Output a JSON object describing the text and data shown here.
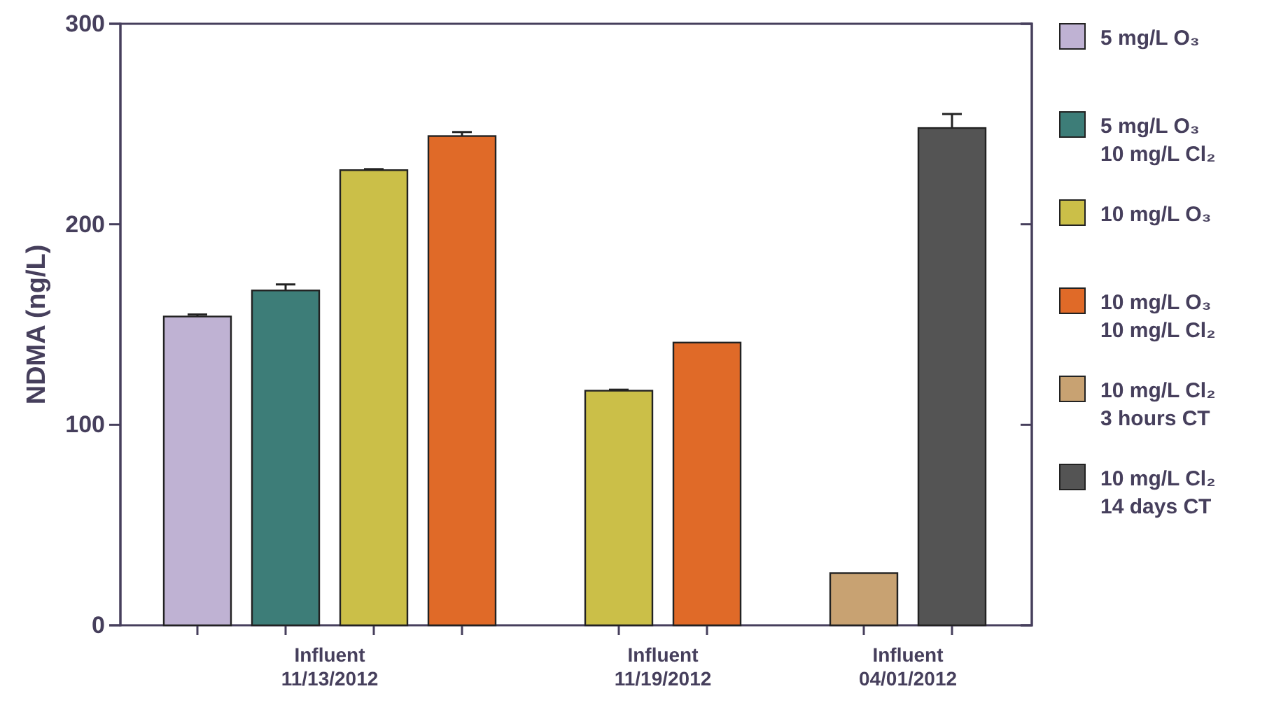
{
  "chart_data": {
    "type": "bar",
    "ylabel": "NDMA (ng/L)",
    "categories": [
      "Influent\n11/13/2012",
      "Influent\n11/19/2012",
      "Influent\n04/01/2012"
    ],
    "series": [
      {
        "name": "5 mg/L O₃",
        "color": "#bfb2d3",
        "values": [
          154,
          null,
          null
        ],
        "errors": [
          1,
          null,
          null
        ]
      },
      {
        "name": "5 mg/L O₃\n10 mg/L Cl₂",
        "color": "#3d7d78",
        "values": [
          167,
          null,
          null
        ],
        "errors": [
          3,
          null,
          null
        ]
      },
      {
        "name": "10 mg/L O₃",
        "color": "#cbbf48",
        "values": [
          227,
          117,
          null
        ],
        "errors": [
          0.5,
          0.5,
          null
        ]
      },
      {
        "name": "10 mg/L O₃\n10 mg/L Cl₂",
        "color": "#e06a28",
        "values": [
          244,
          141,
          null
        ],
        "errors": [
          2,
          null,
          null
        ]
      },
      {
        "name": "10 mg/L Cl₂\n3 hours CT",
        "color": "#c8a272",
        "values": [
          null,
          null,
          26
        ],
        "errors": [
          null,
          null,
          null
        ]
      },
      {
        "name": "10 mg/L Cl₂\n14 days CT",
        "color": "#545454",
        "values": [
          null,
          null,
          248
        ],
        "errors": [
          null,
          null,
          7
        ]
      }
    ],
    "ylim": [
      0,
      300
    ],
    "yticks": [
      0,
      100,
      200,
      300
    ],
    "grid": false,
    "legend": "right"
  }
}
